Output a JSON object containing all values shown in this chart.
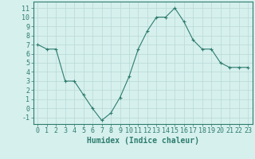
{
  "x": [
    0,
    1,
    2,
    3,
    4,
    5,
    6,
    7,
    8,
    9,
    10,
    11,
    12,
    13,
    14,
    15,
    16,
    17,
    18,
    19,
    20,
    21,
    22,
    23
  ],
  "y": [
    7.0,
    6.5,
    6.5,
    3.0,
    3.0,
    1.5,
    0.0,
    -1.3,
    -0.5,
    1.2,
    3.5,
    6.5,
    8.5,
    10.0,
    10.0,
    11.0,
    9.5,
    7.5,
    6.5,
    6.5,
    5.0,
    4.5,
    4.5,
    4.5
  ],
  "line_color": "#2e7d6e",
  "marker": "+",
  "bg_color": "#d6f0ee",
  "grid_color": "#b8d8d4",
  "xlabel": "Humidex (Indice chaleur)",
  "xlim": [
    -0.5,
    23.5
  ],
  "ylim": [
    -1.7,
    11.7
  ],
  "yticks": [
    -1,
    0,
    1,
    2,
    3,
    4,
    5,
    6,
    7,
    8,
    9,
    10,
    11
  ],
  "xticks": [
    0,
    1,
    2,
    3,
    4,
    5,
    6,
    7,
    8,
    9,
    10,
    11,
    12,
    13,
    14,
    15,
    16,
    17,
    18,
    19,
    20,
    21,
    22,
    23
  ],
  "tick_color": "#2e7d6e",
  "label_color": "#2e7d6e",
  "spine_color": "#2e7d6e",
  "tick_fontsize": 6,
  "xlabel_fontsize": 7
}
